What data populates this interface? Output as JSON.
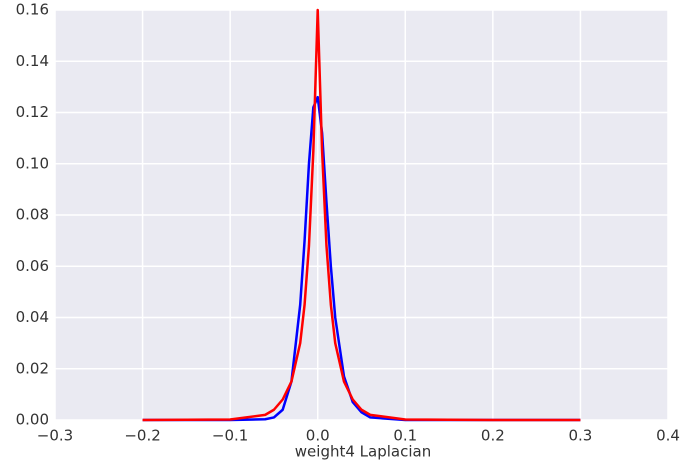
{
  "chart_data": {
    "type": "line",
    "x_label": "weight4 Laplacian",
    "x": [
      -0.2,
      -0.1,
      -0.06,
      -0.05,
      -0.04,
      -0.03,
      -0.02,
      -0.015,
      -0.01,
      -0.005,
      0,
      0.005,
      0.01,
      0.015,
      0.02,
      0.03,
      0.04,
      0.05,
      0.06,
      0.1,
      0.2,
      0.3
    ],
    "series": [
      {
        "color": "#0000ff",
        "values": [
          0,
          0,
          0.0003,
          0.001,
          0.004,
          0.015,
          0.045,
          0.07,
          0.1,
          0.122,
          0.126,
          0.112,
          0.085,
          0.06,
          0.04,
          0.017,
          0.007,
          0.003,
          0.001,
          0,
          0,
          0
        ]
      },
      {
        "color": "#ff0000",
        "values": [
          0,
          0.0002,
          0.002,
          0.004,
          0.008,
          0.015,
          0.03,
          0.045,
          0.068,
          0.105,
          0.16,
          0.105,
          0.068,
          0.045,
          0.03,
          0.015,
          0.008,
          0.004,
          0.002,
          0.0002,
          0,
          0
        ]
      }
    ],
    "xlim": [
      -0.3,
      0.4
    ],
    "xticks": [
      {
        "value": -0.3,
        "label": "−0.3"
      },
      {
        "value": -0.2,
        "label": "−0.2"
      },
      {
        "value": -0.1,
        "label": "−0.1"
      },
      {
        "value": 0,
        "label": "0.0"
      },
      0.1,
      0.2,
      0.3,
      0.4
    ],
    "ylim": [
      0,
      0.16
    ],
    "yticks": [
      {
        "value": 0,
        "label": "0.00"
      },
      {
        "value": 0.02,
        "label": "0.02"
      },
      {
        "value": 0.04,
        "label": "0.04"
      },
      {
        "value": 0.06,
        "label": "0.06"
      },
      {
        "value": 0.08,
        "label": "0.08"
      },
      {
        "value": 0.1,
        "label": "0.10"
      },
      {
        "value": 0.12,
        "label": "0.12"
      },
      {
        "value": 0.14,
        "label": "0.14"
      },
      {
        "value": 0.16,
        "label": "0.16"
      }
    ],
    "grid": true,
    "background": "#eaeaf2"
  }
}
